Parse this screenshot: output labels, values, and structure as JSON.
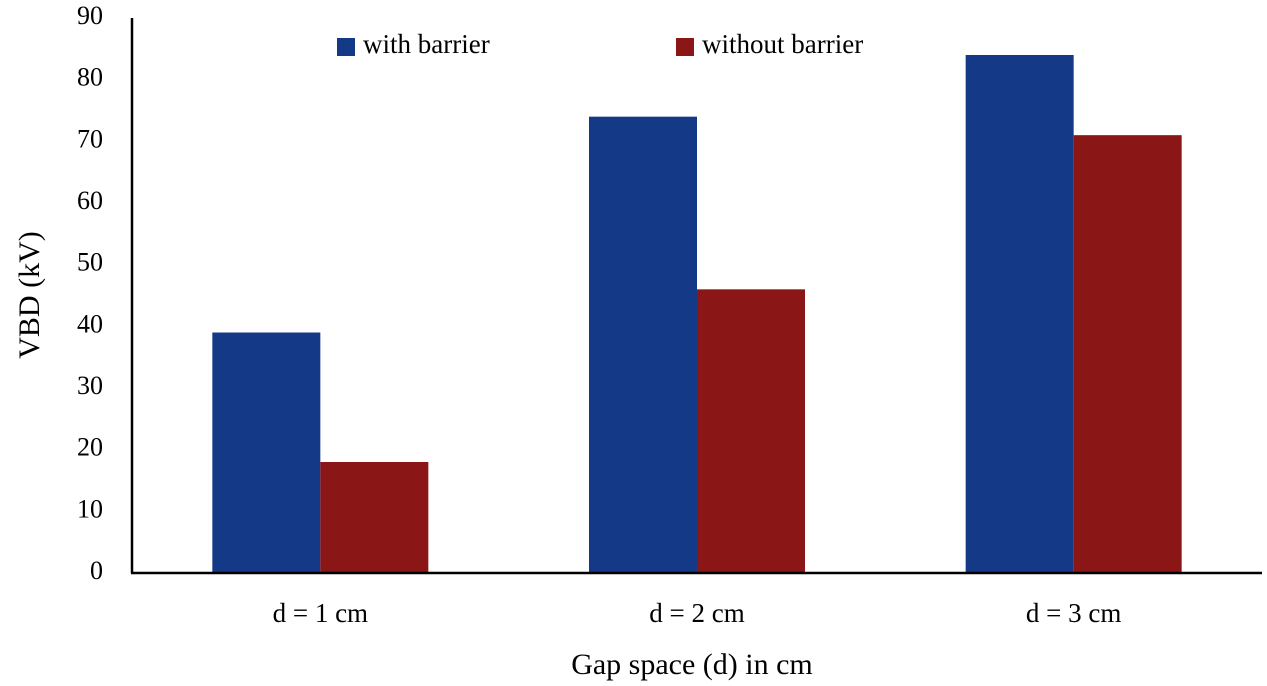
{
  "chart_data": {
    "type": "bar",
    "title": "",
    "xlabel": "Gap space (d) in cm",
    "ylabel": "VBD (kV)",
    "categories": [
      "d = 1 cm",
      "d = 2 cm",
      "d = 3 cm"
    ],
    "series": [
      {
        "name": "with barrier",
        "color": "#143a87",
        "values": [
          39,
          74,
          84
        ]
      },
      {
        "name": "without barrier",
        "color": "#8b1616",
        "values": [
          18,
          46,
          71
        ]
      }
    ],
    "ylim": [
      0,
      90
    ],
    "yticks": [
      "0",
      "10",
      "20",
      "30",
      "40",
      "50",
      "60",
      "70",
      "80",
      "90"
    ],
    "grid": false,
    "legend_position": "top"
  }
}
